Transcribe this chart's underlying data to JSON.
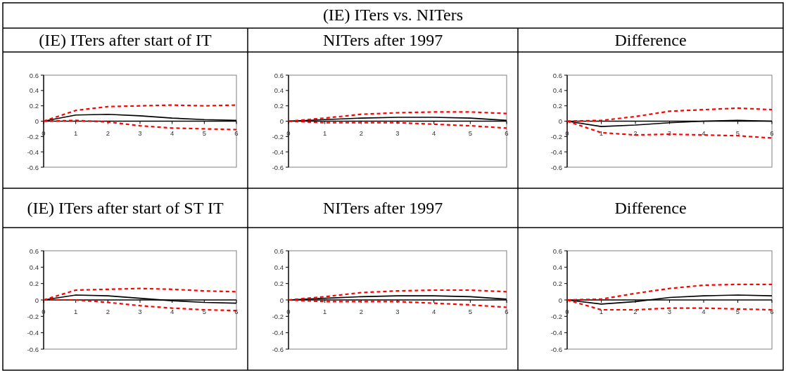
{
  "chart_data": [
    {
      "type": "line",
      "title": "(IE) ITers after start of IT",
      "annotations": [
        "(IE) ITers vs. NITers"
      ],
      "x": [
        0,
        1,
        2,
        3,
        4,
        5,
        6
      ],
      "xlim": [
        0,
        6
      ],
      "xticks": [
        0,
        1,
        2,
        3,
        4,
        5,
        6
      ],
      "ylim": [
        -0.6,
        0.6
      ],
      "yticks": [
        -0.6,
        -0.4,
        -0.2,
        0,
        0.2,
        0.4,
        0.6
      ],
      "series": [
        {
          "color": "#000000",
          "line_style": "solid",
          "values": [
            0,
            0.08,
            0.09,
            0.07,
            0.04,
            0.02,
            0.01
          ]
        },
        {
          "color": "#ff0000",
          "line_style": "dashed",
          "values": [
            0,
            0.14,
            0.19,
            0.2,
            0.21,
            0.2,
            0.21
          ]
        },
        {
          "color": "#ff0000",
          "line_style": "dashed",
          "values": [
            0,
            0.01,
            -0.01,
            -0.06,
            -0.09,
            -0.1,
            -0.11
          ]
        }
      ]
    },
    {
      "type": "line",
      "title": "NITers after 1997",
      "x": [
        0,
        1,
        2,
        3,
        4,
        5,
        6
      ],
      "xlim": [
        0,
        6
      ],
      "xticks": [
        0,
        1,
        2,
        3,
        4,
        5,
        6
      ],
      "ylim": [
        -0.6,
        0.6
      ],
      "yticks": [
        -0.6,
        -0.4,
        -0.2,
        0,
        0.2,
        0.4,
        0.6
      ],
      "series": [
        {
          "color": "#000000",
          "line_style": "solid",
          "values": [
            0,
            0.02,
            0.04,
            0.05,
            0.05,
            0.04,
            0.01
          ]
        },
        {
          "color": "#ff0000",
          "line_style": "dashed",
          "values": [
            0,
            0.04,
            0.09,
            0.11,
            0.12,
            0.12,
            0.1
          ]
        },
        {
          "color": "#ff0000",
          "line_style": "dashed",
          "values": [
            0,
            -0.02,
            -0.02,
            -0.02,
            -0.04,
            -0.06,
            -0.09
          ]
        }
      ]
    },
    {
      "type": "line",
      "title": "Difference",
      "x": [
        0,
        1,
        2,
        3,
        4,
        5,
        6
      ],
      "xlim": [
        0,
        6
      ],
      "xticks": [
        0,
        1,
        2,
        3,
        4,
        5,
        6
      ],
      "ylim": [
        -0.6,
        0.6
      ],
      "yticks": [
        -0.6,
        -0.4,
        -0.2,
        0,
        0.2,
        0.4,
        0.6
      ],
      "series": [
        {
          "color": "#000000",
          "line_style": "solid",
          "values": [
            0,
            -0.07,
            -0.05,
            -0.02,
            0,
            0.01,
            0
          ]
        },
        {
          "color": "#ff0000",
          "line_style": "dashed",
          "values": [
            0,
            0.01,
            0.06,
            0.13,
            0.15,
            0.17,
            0.15
          ]
        },
        {
          "color": "#ff0000",
          "line_style": "dashed",
          "values": [
            0,
            -0.15,
            -0.18,
            -0.17,
            -0.18,
            -0.19,
            -0.22
          ]
        }
      ]
    },
    {
      "type": "line",
      "title": "(IE) ITers after start of ST IT",
      "x": [
        0,
        1,
        2,
        3,
        4,
        5,
        6
      ],
      "xlim": [
        0,
        6
      ],
      "xticks": [
        0,
        1,
        2,
        3,
        4,
        5,
        6
      ],
      "ylim": [
        -0.6,
        0.6
      ],
      "yticks": [
        -0.6,
        -0.4,
        -0.2,
        0,
        0.2,
        0.4,
        0.6
      ],
      "series": [
        {
          "color": "#000000",
          "line_style": "solid",
          "values": [
            0,
            0.06,
            0.05,
            0.02,
            -0.01,
            -0.03,
            -0.04
          ]
        },
        {
          "color": "#ff0000",
          "line_style": "dashed",
          "values": [
            0,
            0.12,
            0.13,
            0.14,
            0.13,
            0.11,
            0.1
          ]
        },
        {
          "color": "#ff0000",
          "line_style": "dashed",
          "values": [
            0,
            0,
            -0.03,
            -0.07,
            -0.1,
            -0.12,
            -0.13
          ]
        }
      ]
    },
    {
      "type": "line",
      "title": "NITers after 1997",
      "x": [
        0,
        1,
        2,
        3,
        4,
        5,
        6
      ],
      "xlim": [
        0,
        6
      ],
      "xticks": [
        0,
        1,
        2,
        3,
        4,
        5,
        6
      ],
      "ylim": [
        -0.6,
        0.6
      ],
      "yticks": [
        -0.6,
        -0.4,
        -0.2,
        0,
        0.2,
        0.4,
        0.6
      ],
      "series": [
        {
          "color": "#000000",
          "line_style": "solid",
          "values": [
            0,
            0.02,
            0.04,
            0.05,
            0.05,
            0.04,
            0.01
          ]
        },
        {
          "color": "#ff0000",
          "line_style": "dashed",
          "values": [
            0,
            0.04,
            0.09,
            0.11,
            0.12,
            0.12,
            0.1
          ]
        },
        {
          "color": "#ff0000",
          "line_style": "dashed",
          "values": [
            0,
            -0.02,
            -0.02,
            -0.02,
            -0.04,
            -0.06,
            -0.09
          ]
        }
      ]
    },
    {
      "type": "line",
      "title": "Difference",
      "x": [
        0,
        1,
        2,
        3,
        4,
        5,
        6
      ],
      "xlim": [
        0,
        6
      ],
      "xticks": [
        0,
        1,
        2,
        3,
        4,
        5,
        6
      ],
      "ylim": [
        -0.6,
        0.6
      ],
      "yticks": [
        -0.6,
        -0.4,
        -0.2,
        0,
        0.2,
        0.4,
        0.6
      ],
      "series": [
        {
          "color": "#000000",
          "line_style": "solid",
          "values": [
            0,
            -0.05,
            -0.02,
            0.03,
            0.05,
            0.06,
            0.05
          ]
        },
        {
          "color": "#ff0000",
          "line_style": "dashed",
          "values": [
            0,
            0.01,
            0.08,
            0.14,
            0.18,
            0.19,
            0.19
          ]
        },
        {
          "color": "#ff0000",
          "line_style": "dashed",
          "values": [
            0,
            -0.12,
            -0.12,
            -0.1,
            -0.1,
            -0.11,
            -0.12
          ]
        }
      ]
    }
  ]
}
